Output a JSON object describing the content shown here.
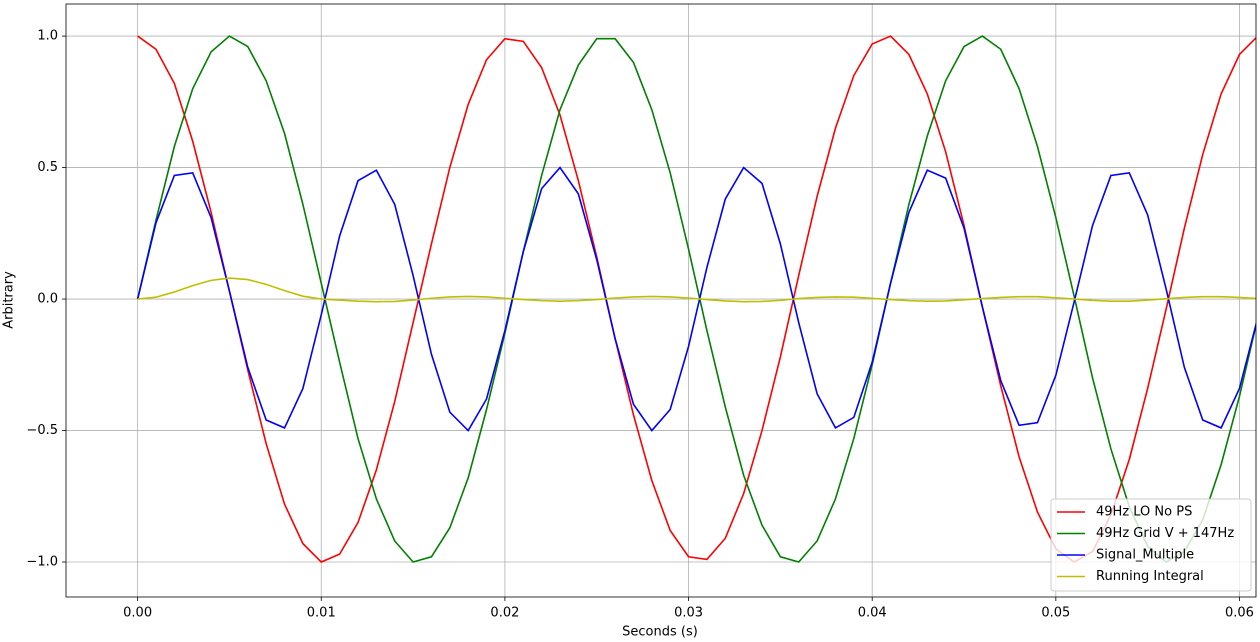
{
  "chart_data": {
    "type": "line",
    "xlabel": "Seconds (s)",
    "ylabel": "Arbitrary",
    "x": [
      0,
      0.001,
      0.002,
      0.003,
      0.004,
      0.005,
      0.006,
      0.007,
      0.008,
      0.009,
      0.01,
      0.011,
      0.012,
      0.013,
      0.014,
      0.015,
      0.016,
      0.017,
      0.018,
      0.019,
      0.02,
      0.021,
      0.022,
      0.023,
      0.024,
      0.025,
      0.026,
      0.027,
      0.028,
      0.029,
      0.03,
      0.031,
      0.032,
      0.033,
      0.034,
      0.035,
      0.036,
      0.037,
      0.038,
      0.039,
      0.04,
      0.041,
      0.042,
      0.043,
      0.044,
      0.045,
      0.046,
      0.047,
      0.048,
      0.049,
      0.05,
      0.051,
      0.052,
      0.053,
      0.054,
      0.055,
      0.056,
      0.057,
      0.058,
      0.059,
      0.06,
      0.061
    ],
    "series": [
      {
        "name": "49Hz LO No PS",
        "color": "#ff0000",
        "values": [
          1,
          0.95,
          0.82,
          0.6,
          0.33,
          0.03,
          -0.27,
          -0.55,
          -0.78,
          -0.93,
          -1,
          -0.97,
          -0.85,
          -0.65,
          -0.39,
          -0.09,
          0.21,
          0.5,
          0.74,
          0.91,
          0.99,
          0.98,
          0.88,
          0.7,
          0.45,
          0.16,
          -0.15,
          -0.44,
          -0.69,
          -0.88,
          -0.98,
          -0.99,
          -0.91,
          -0.74,
          -0.5,
          -0.22,
          0.09,
          0.39,
          0.65,
          0.85,
          0.97,
          1,
          0.93,
          0.78,
          0.56,
          0.28,
          -0.03,
          -0.33,
          -0.6,
          -0.81,
          -0.95,
          -1,
          -0.96,
          -0.82,
          -0.61,
          -0.34,
          -0.04,
          0.27,
          0.55,
          0.78,
          0.93,
          1
        ]
      },
      {
        "name": "49Hz Grid V + 147Hz",
        "color": "#008000",
        "values": [
          0,
          0.3,
          0.58,
          0.8,
          0.94,
          1,
          0.96,
          0.83,
          0.63,
          0.36,
          0.06,
          -0.24,
          -0.53,
          -0.76,
          -0.92,
          -1,
          -0.98,
          -0.87,
          -0.68,
          -0.42,
          -0.13,
          0.18,
          0.47,
          0.72,
          0.89,
          0.99,
          0.99,
          0.9,
          0.72,
          0.48,
          0.19,
          -0.12,
          -0.41,
          -0.67,
          -0.86,
          -0.98,
          -1,
          -0.92,
          -0.76,
          -0.53,
          -0.25,
          0.06,
          0.36,
          0.62,
          0.83,
          0.96,
          1,
          0.95,
          0.8,
          0.58,
          0.31,
          0.01,
          -0.3,
          -0.57,
          -0.79,
          -0.94,
          -1,
          -0.96,
          -0.84,
          -0.63,
          -0.37,
          -0.07
        ]
      },
      {
        "name": "Signal_Multiple",
        "color": "#0000ff",
        "values": [
          0,
          0.29,
          0.47,
          0.48,
          0.31,
          0.03,
          -0.26,
          -0.46,
          -0.49,
          -0.34,
          -0.06,
          0.24,
          0.45,
          0.49,
          0.36,
          0.09,
          -0.21,
          -0.43,
          -0.5,
          -0.38,
          -0.12,
          0.18,
          0.42,
          0.5,
          0.4,
          0.15,
          -0.15,
          -0.4,
          -0.5,
          -0.42,
          -0.18,
          0.12,
          0.38,
          0.5,
          0.44,
          0.21,
          -0.09,
          -0.36,
          -0.49,
          -0.45,
          -0.24,
          0.06,
          0.33,
          0.49,
          0.46,
          0.27,
          -0.03,
          -0.31,
          -0.48,
          -0.47,
          -0.29,
          -0.01,
          0.28,
          0.47,
          0.48,
          0.32,
          0.04,
          -0.26,
          -0.46,
          -0.49,
          -0.34,
          -0.07
        ]
      },
      {
        "name": "Running Integral",
        "color": "#bfbf00",
        "values": [
          0,
          0.007,
          0.027,
          0.051,
          0.071,
          0.08,
          0.074,
          0.056,
          0.032,
          0.011,
          0,
          -0.004,
          -0.008,
          -0.01,
          -0.009,
          -0.004,
          0.003,
          0.008,
          0.01,
          0.008,
          0.003,
          -0.002,
          -0.006,
          -0.008,
          -0.006,
          -0.002,
          0.004,
          0.008,
          0.01,
          0.008,
          0.004,
          -0.002,
          -0.007,
          -0.01,
          -0.009,
          -0.005,
          0.002,
          0.006,
          0.008,
          0.007,
          0.003,
          -0.002,
          -0.006,
          -0.008,
          -0.007,
          -0.003,
          0.002,
          0.006,
          0.009,
          0.009,
          0.005,
          0,
          -0.005,
          -0.008,
          -0.008,
          -0.004,
          0.001,
          0.006,
          0.009,
          0.009,
          0.006,
          0.002
        ]
      }
    ],
    "xlim": [
      -0.0039,
      0.0609
    ],
    "ylim": [
      -1.133,
      1.122
    ],
    "xticks": [
      {
        "value": 0,
        "label": "0.00"
      },
      {
        "value": 0.01,
        "label": "0.01"
      },
      {
        "value": 0.02,
        "label": "0.02"
      },
      {
        "value": 0.03,
        "label": "0.03"
      },
      {
        "value": 0.04,
        "label": "0.04"
      },
      {
        "value": 0.05,
        "label": "0.05"
      },
      {
        "value": 0.06,
        "label": "0.06"
      }
    ],
    "yticks": [
      {
        "value": -1,
        "label": "−1.0"
      },
      {
        "value": -0.5,
        "label": "−0.5"
      },
      {
        "value": 0,
        "label": "0.0"
      },
      {
        "value": 0.5,
        "label": "0.5"
      },
      {
        "value": 1,
        "label": "1.0"
      }
    ],
    "grid": true,
    "legend": "lower right"
  }
}
